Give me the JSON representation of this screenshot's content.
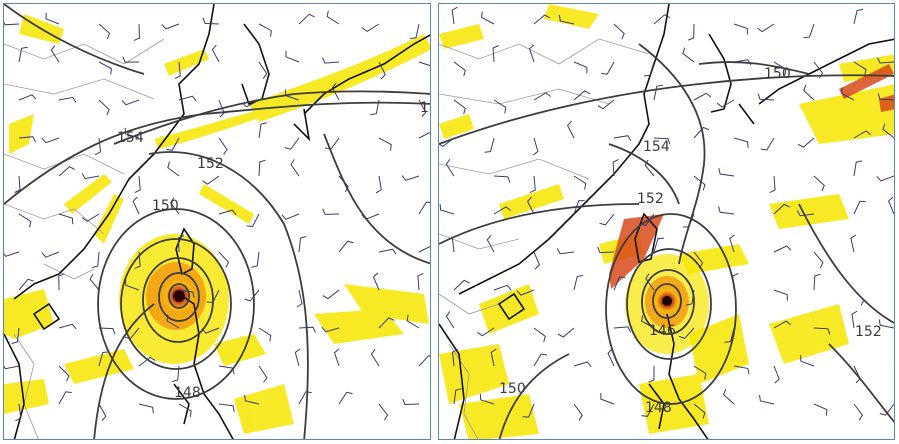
{
  "panels": [
    {
      "id": "left",
      "contour_labels": [
        "154",
        "152",
        "150",
        "148",
        "1"
      ],
      "colors": {
        "contour": "#3d3d3d",
        "coast": "#111111",
        "border": "#9a9a9a",
        "wind_low": "#ffee00",
        "wind_mid": "#f5a623",
        "wind_high": "#c0392b",
        "barb": "#3a3a6a"
      }
    },
    {
      "id": "right",
      "contour_labels": [
        "150",
        "154",
        "152",
        "146",
        "152",
        "150",
        "148"
      ],
      "colors": {
        "contour": "#3d3d3d",
        "coast": "#111111",
        "border": "#9a9a9a",
        "wind_low": "#ffee00",
        "wind_mid": "#f5a623",
        "wind_high": "#c0392b",
        "barb": "#3a3a6a"
      }
    }
  ]
}
